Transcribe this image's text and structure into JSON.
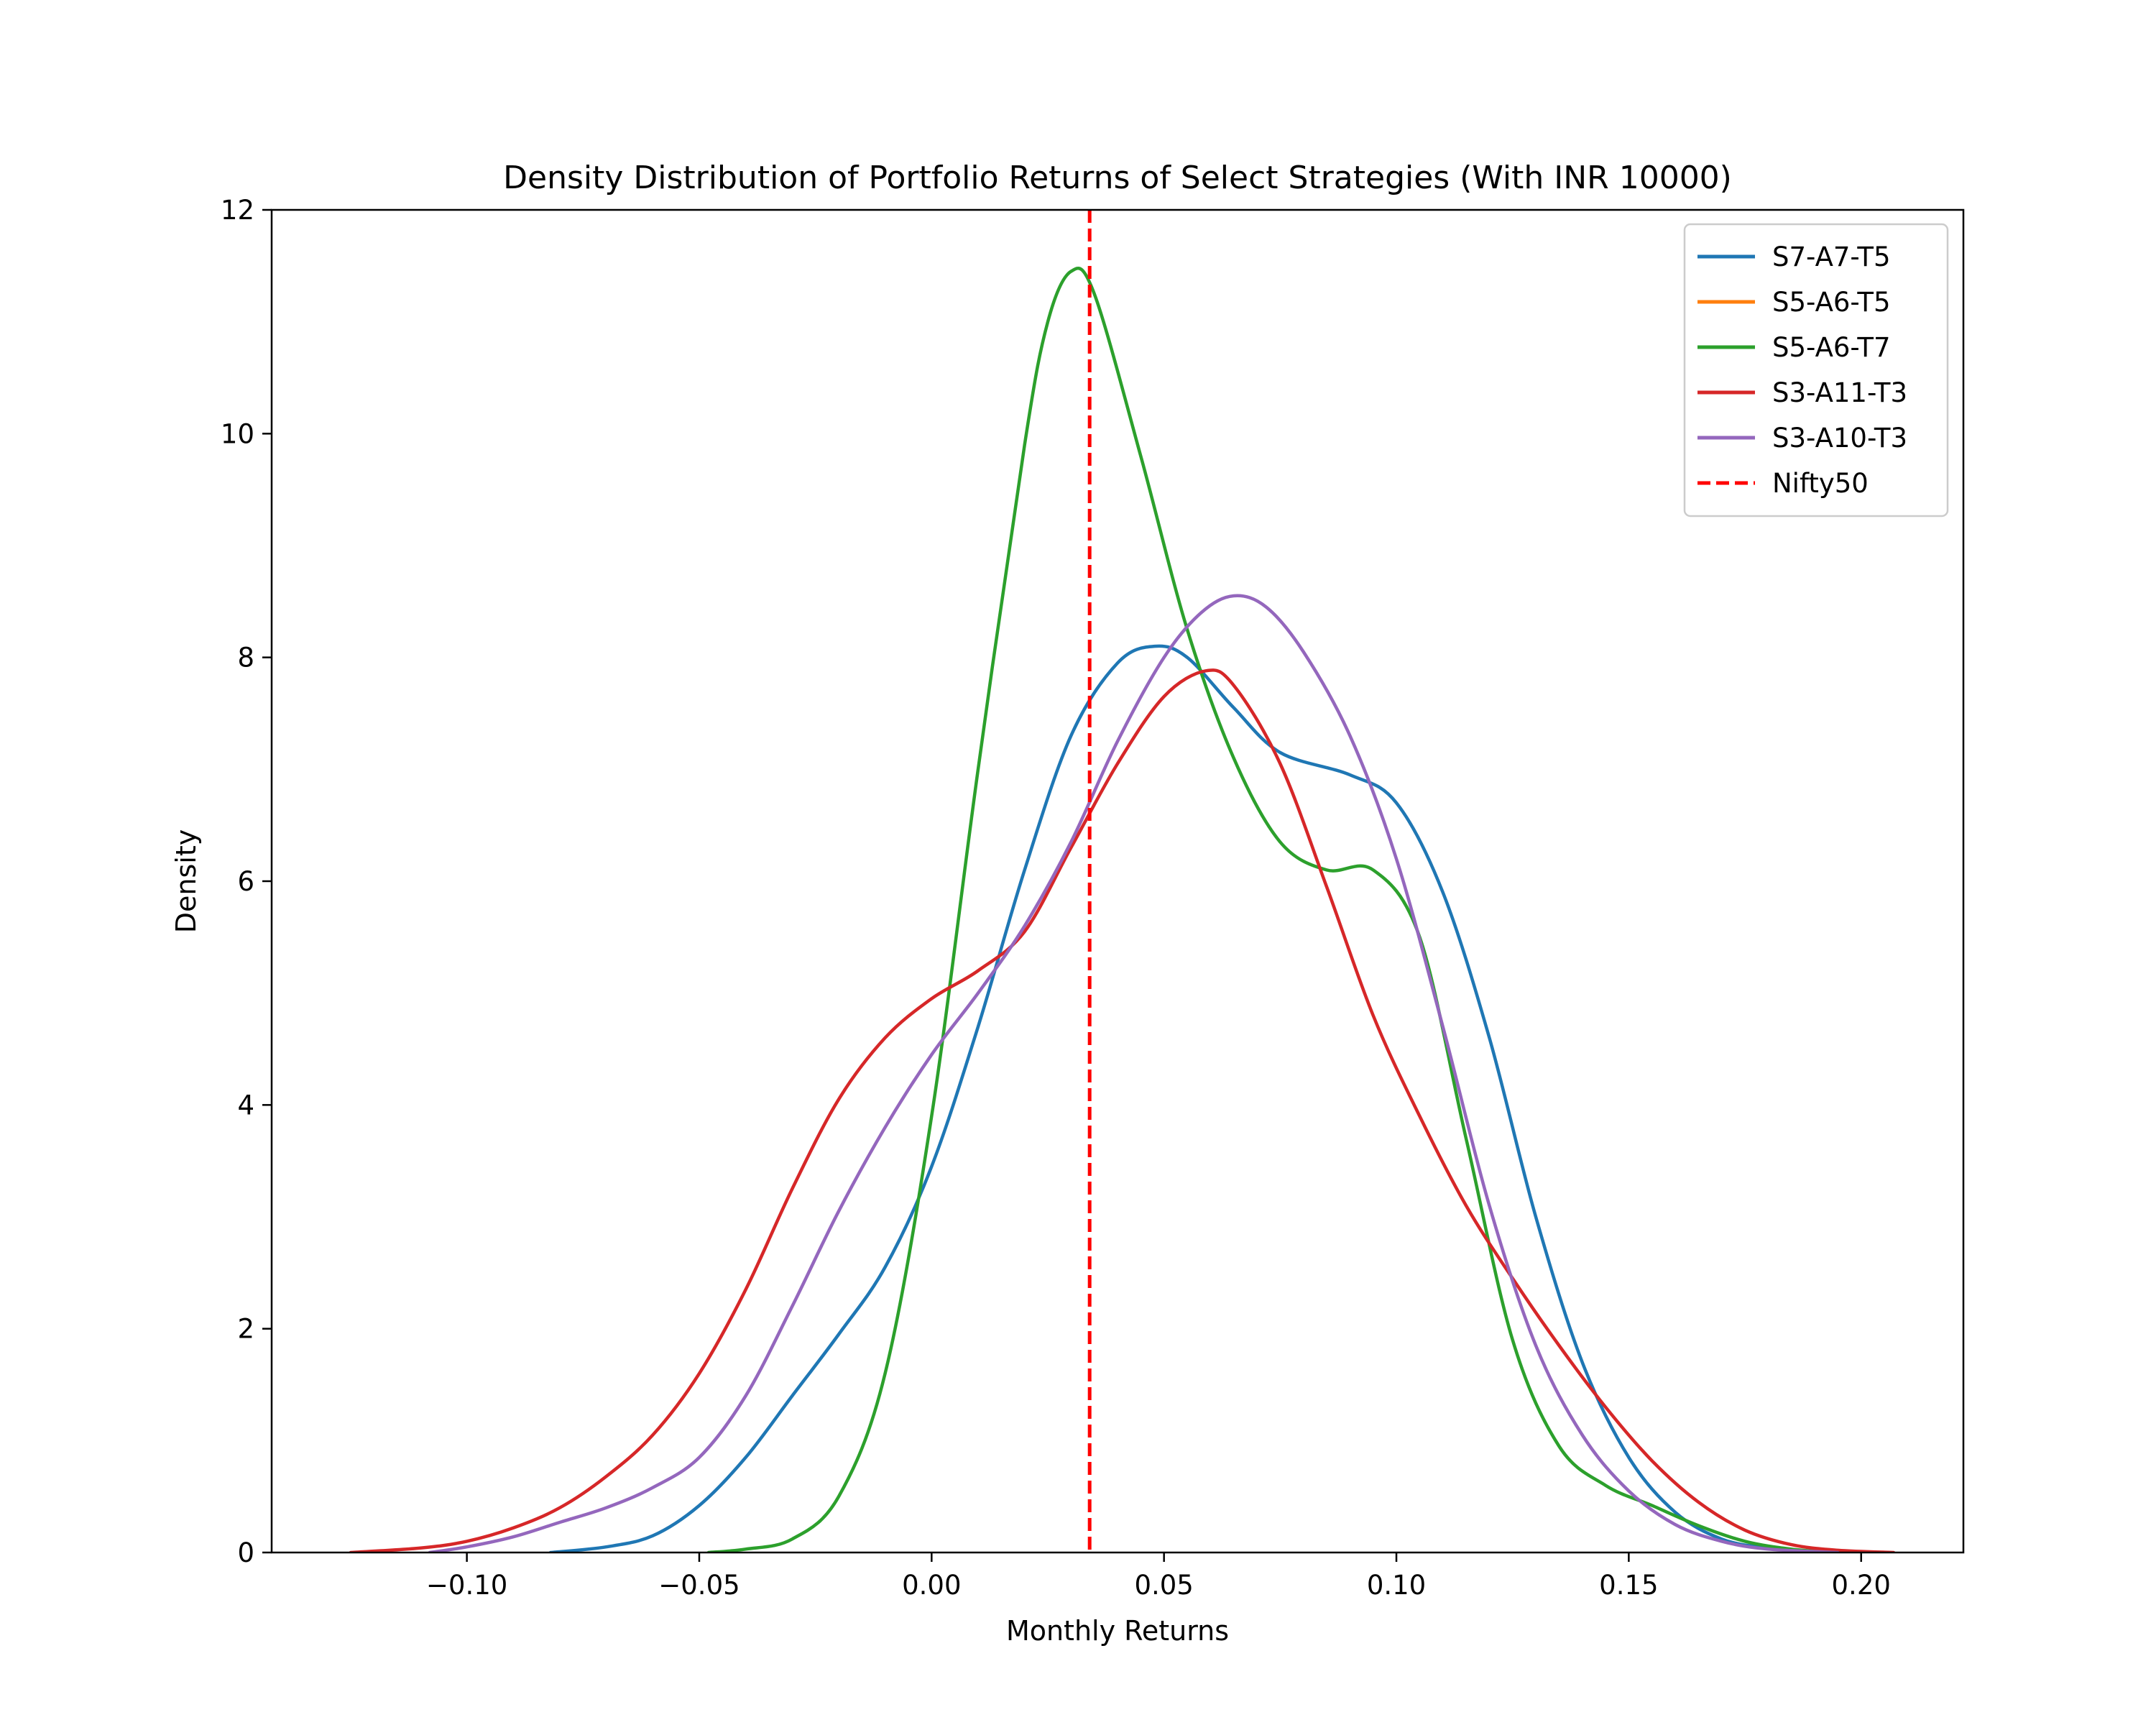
{
  "chart_data": {
    "type": "line",
    "title": "Density Distribution of Portfolio Returns of Select Strategies (With INR 10000)",
    "xlabel": "Monthly Returns",
    "ylabel": "Density",
    "xlim": [
      -0.142,
      0.222
    ],
    "ylim": [
      0,
      12
    ],
    "xticks": [
      -0.1,
      -0.05,
      0.0,
      0.05,
      0.1,
      0.15,
      0.2
    ],
    "xtick_labels": [
      "−0.10",
      "−0.05",
      "0.00",
      "0.05",
      "0.10",
      "0.15",
      "0.20"
    ],
    "yticks": [
      0,
      2,
      4,
      6,
      8,
      10,
      12
    ],
    "ytick_labels": [
      "0",
      "2",
      "4",
      "6",
      "8",
      "10",
      "12"
    ],
    "grid": false,
    "legend_position": "top-right",
    "series": [
      {
        "name": "S7-A7-T5",
        "color": "#1f77b4",
        "style": "solid",
        "points": [
          [
            -0.082,
            0.0
          ],
          [
            -0.07,
            0.05
          ],
          [
            -0.06,
            0.15
          ],
          [
            -0.05,
            0.42
          ],
          [
            -0.04,
            0.85
          ],
          [
            -0.03,
            1.4
          ],
          [
            -0.02,
            1.95
          ],
          [
            -0.01,
            2.55
          ],
          [
            0.0,
            3.45
          ],
          [
            0.01,
            4.7
          ],
          [
            0.02,
            6.1
          ],
          [
            0.03,
            7.3
          ],
          [
            0.04,
            7.95
          ],
          [
            0.048,
            8.1
          ],
          [
            0.055,
            8.0
          ],
          [
            0.065,
            7.55
          ],
          [
            0.075,
            7.15
          ],
          [
            0.09,
            6.95
          ],
          [
            0.1,
            6.7
          ],
          [
            0.11,
            5.9
          ],
          [
            0.12,
            4.6
          ],
          [
            0.13,
            3.0
          ],
          [
            0.14,
            1.7
          ],
          [
            0.15,
            0.85
          ],
          [
            0.16,
            0.36
          ],
          [
            0.17,
            0.12
          ],
          [
            0.18,
            0.04
          ],
          [
            0.19,
            0.01
          ],
          [
            0.198,
            0.0
          ]
        ]
      },
      {
        "name": "S5-A6-T5",
        "color": "#ff7f0e",
        "style": "solid",
        "points": []
      },
      {
        "name": "S5-A6-T7",
        "color": "#2ca02c",
        "style": "solid",
        "points": [
          [
            -0.048,
            0.0
          ],
          [
            -0.04,
            0.03
          ],
          [
            -0.03,
            0.12
          ],
          [
            -0.02,
            0.5
          ],
          [
            -0.01,
            1.6
          ],
          [
            0.0,
            3.9
          ],
          [
            0.01,
            7.0
          ],
          [
            0.02,
            9.9
          ],
          [
            0.025,
            11.0
          ],
          [
            0.03,
            11.45
          ],
          [
            0.035,
            11.25
          ],
          [
            0.045,
            9.8
          ],
          [
            0.055,
            8.25
          ],
          [
            0.065,
            7.1
          ],
          [
            0.075,
            6.35
          ],
          [
            0.085,
            6.1
          ],
          [
            0.095,
            6.1
          ],
          [
            0.105,
            5.5
          ],
          [
            0.115,
            3.7
          ],
          [
            0.125,
            1.9
          ],
          [
            0.135,
            0.95
          ],
          [
            0.145,
            0.6
          ],
          [
            0.155,
            0.42
          ],
          [
            0.165,
            0.24
          ],
          [
            0.175,
            0.1
          ],
          [
            0.185,
            0.03
          ],
          [
            0.195,
            0.0
          ]
        ]
      },
      {
        "name": "S3-A11-T3",
        "color": "#d62728",
        "style": "solid",
        "points": [
          [
            -0.125,
            0.0
          ],
          [
            -0.11,
            0.04
          ],
          [
            -0.1,
            0.1
          ],
          [
            -0.09,
            0.22
          ],
          [
            -0.08,
            0.4
          ],
          [
            -0.07,
            0.68
          ],
          [
            -0.06,
            1.05
          ],
          [
            -0.05,
            1.6
          ],
          [
            -0.04,
            2.35
          ],
          [
            -0.03,
            3.25
          ],
          [
            -0.02,
            4.05
          ],
          [
            -0.01,
            4.6
          ],
          [
            0.0,
            4.95
          ],
          [
            0.01,
            5.2
          ],
          [
            0.02,
            5.55
          ],
          [
            0.03,
            6.3
          ],
          [
            0.04,
            7.05
          ],
          [
            0.05,
            7.65
          ],
          [
            0.059,
            7.88
          ],
          [
            0.065,
            7.75
          ],
          [
            0.075,
            7.05
          ],
          [
            0.085,
            5.95
          ],
          [
            0.095,
            4.8
          ],
          [
            0.105,
            3.9
          ],
          [
            0.115,
            3.1
          ],
          [
            0.125,
            2.45
          ],
          [
            0.135,
            1.85
          ],
          [
            0.145,
            1.3
          ],
          [
            0.155,
            0.82
          ],
          [
            0.165,
            0.45
          ],
          [
            0.175,
            0.2
          ],
          [
            0.185,
            0.07
          ],
          [
            0.195,
            0.02
          ],
          [
            0.207,
            0.0
          ]
        ]
      },
      {
        "name": "S3-A10-T3",
        "color": "#9467bd",
        "style": "solid",
        "points": [
          [
            -0.108,
            0.0
          ],
          [
            -0.1,
            0.05
          ],
          [
            -0.09,
            0.14
          ],
          [
            -0.08,
            0.27
          ],
          [
            -0.07,
            0.4
          ],
          [
            -0.06,
            0.58
          ],
          [
            -0.05,
            0.85
          ],
          [
            -0.04,
            1.4
          ],
          [
            -0.03,
            2.2
          ],
          [
            -0.02,
            3.05
          ],
          [
            -0.01,
            3.8
          ],
          [
            0.0,
            4.45
          ],
          [
            0.01,
            5.0
          ],
          [
            0.02,
            5.6
          ],
          [
            0.03,
            6.35
          ],
          [
            0.04,
            7.25
          ],
          [
            0.05,
            8.0
          ],
          [
            0.058,
            8.4
          ],
          [
            0.065,
            8.55
          ],
          [
            0.072,
            8.45
          ],
          [
            0.08,
            8.05
          ],
          [
            0.09,
            7.3
          ],
          [
            0.1,
            6.2
          ],
          [
            0.11,
            4.7
          ],
          [
            0.12,
            3.1
          ],
          [
            0.13,
            1.85
          ],
          [
            0.14,
            1.05
          ],
          [
            0.15,
            0.55
          ],
          [
            0.16,
            0.25
          ],
          [
            0.17,
            0.1
          ],
          [
            0.18,
            0.03
          ],
          [
            0.195,
            0.0
          ]
        ]
      },
      {
        "name": "Nifty50",
        "color": "#ff0000",
        "style": "dashed",
        "vline_x": 0.034
      }
    ]
  }
}
